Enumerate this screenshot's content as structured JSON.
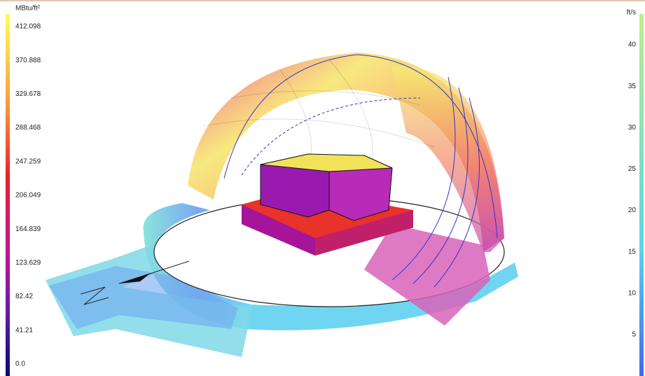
{
  "left_legend": {
    "title": "MBtu/ft²",
    "labels": [
      "412.098",
      "370.888",
      "329.678",
      "288.468",
      "247.259",
      "206.049",
      "164.839",
      "123.629",
      "82.42",
      "41.21",
      "0.0"
    ]
  },
  "right_legend": {
    "title": "ft/s",
    "labels": [
      "40",
      "35",
      "30",
      "25",
      "20",
      "15",
      "10",
      "5"
    ]
  }
}
